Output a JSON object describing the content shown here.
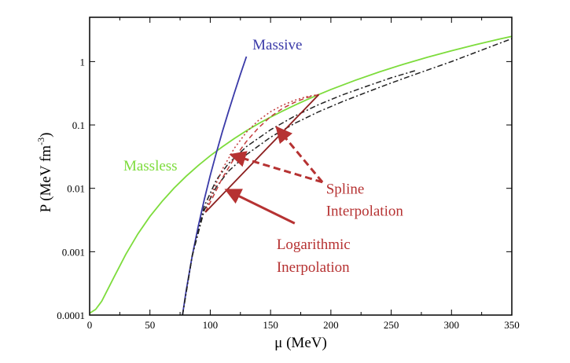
{
  "chart_data": {
    "type": "line",
    "xlabel": "μ (MeV)",
    "ylabel": "P (MeV fm",
    "ylabel_sup": "-3",
    "ylabel_close": ")",
    "xlim": [
      0,
      350
    ],
    "ylim": [
      0.0001,
      5
    ],
    "y_scale": "log",
    "grid": false,
    "x_ticks": [
      0,
      50,
      100,
      150,
      200,
      250,
      300,
      350
    ],
    "x_tick_labels": [
      "0",
      "50",
      "100",
      "150",
      "200",
      "250",
      "300",
      "350"
    ],
    "y_ticks": [
      0.0001,
      0.001,
      0.01,
      0.1,
      1
    ],
    "y_tick_labels": [
      "0.0001",
      "0.001",
      "0.01",
      "0.1",
      "1"
    ],
    "series": [
      {
        "name": "Massless",
        "color": "#7ddc3c",
        "style": "solid",
        "x": [
          0,
          5,
          10,
          20,
          30,
          40,
          50,
          60,
          70,
          80,
          90,
          100,
          110,
          120,
          130,
          140,
          150,
          160,
          170,
          180,
          190,
          200,
          220,
          240,
          260,
          280,
          300,
          320,
          340,
          350
        ],
        "y": [
          0.000107,
          0.000123,
          0.000165,
          0.00039,
          0.00091,
          0.00191,
          0.0036,
          0.0062,
          0.0101,
          0.0155,
          0.0229,
          0.0327,
          0.0452,
          0.0611,
          0.081,
          0.105,
          0.133,
          0.166,
          0.205,
          0.25,
          0.302,
          0.362,
          0.505,
          0.685,
          0.905,
          1.17,
          1.48,
          1.85,
          2.27,
          2.5
        ]
      },
      {
        "name": "Massive",
        "color": "#3a3aa8",
        "style": "solid",
        "x": [
          77,
          80,
          85,
          90,
          95,
          100,
          105,
          110,
          115,
          120,
          125,
          130
        ],
        "y": [
          0.0001,
          0.00024,
          0.00085,
          0.0025,
          0.0066,
          0.016,
          0.036,
          0.078,
          0.16,
          0.32,
          0.63,
          1.2
        ]
      },
      {
        "name": "",
        "color": "#222222",
        "style": "dashdot",
        "x": [
          77,
          85,
          95,
          105,
          115,
          130,
          150,
          170,
          190,
          210,
          230,
          250,
          270,
          300,
          330,
          350
        ],
        "y": [
          0.0001,
          0.00085,
          0.0045,
          0.0105,
          0.0185,
          0.034,
          0.064,
          0.106,
          0.162,
          0.235,
          0.33,
          0.46,
          0.63,
          1.0,
          1.65,
          2.3
        ]
      },
      {
        "name": "",
        "color": "#222222",
        "style": "dashdot",
        "x": [
          77,
          85,
          95,
          105,
          115,
          130,
          150,
          170,
          190,
          210,
          230,
          250,
          270
        ],
        "y": [
          0.0001,
          0.00085,
          0.0052,
          0.0135,
          0.0245,
          0.0455,
          0.084,
          0.138,
          0.21,
          0.3,
          0.41,
          0.555,
          0.72
        ]
      },
      {
        "name": "Spline Interpolation",
        "color": "#c23c3c",
        "style": "dotted",
        "x": [
          96,
          100,
          110,
          120,
          130,
          140,
          150,
          160,
          170,
          180,
          190
        ],
        "y": [
          0.0042,
          0.0072,
          0.02,
          0.043,
          0.077,
          0.118,
          0.162,
          0.205,
          0.245,
          0.28,
          0.302
        ]
      },
      {
        "name": "Spline Interpolation",
        "color": "#c23c3c",
        "style": "dashed",
        "x": [
          96,
          100,
          110,
          120,
          130,
          140,
          150,
          160,
          170,
          180,
          190
        ],
        "y": [
          0.0042,
          0.006,
          0.0145,
          0.03,
          0.055,
          0.09,
          0.135,
          0.183,
          0.228,
          0.27,
          0.302
        ]
      },
      {
        "name": "Logarithmic Inerpolation",
        "color": "#8c1f1f",
        "style": "solid",
        "x": [
          96,
          190
        ],
        "y": [
          0.0042,
          0.302
        ]
      }
    ],
    "annotations": [
      {
        "text": "Massive",
        "color": "#3a3aa8",
        "x": 135,
        "y": 1.55
      },
      {
        "text": "Massless",
        "color": "#7ddc3c",
        "x": 28,
        "y": 0.019
      },
      {
        "text": "Spline",
        "color": "#b63232",
        "x": 196,
        "y": 0.0082
      },
      {
        "text": "Interpolation",
        "color": "#b63232",
        "x": 196,
        "y": 0.0037
      },
      {
        "text": "Logarithmic",
        "color": "#b63232",
        "x": 155,
        "y": 0.0011
      },
      {
        "text": "Inerpolation",
        "color": "#b63232",
        "x": 155,
        "y": 0.00048
      }
    ],
    "arrows": [
      {
        "color": "#b63232",
        "style": "dashed",
        "from": [
          193,
          0.0125
        ],
        "to": [
          155,
          0.092
        ]
      },
      {
        "color": "#b63232",
        "style": "dashed",
        "from": [
          193,
          0.0125
        ],
        "to": [
          117,
          0.034
        ]
      },
      {
        "color": "#b63232",
        "style": "solid",
        "from": [
          170,
          0.0028
        ],
        "to": [
          113,
          0.0095
        ]
      }
    ]
  }
}
